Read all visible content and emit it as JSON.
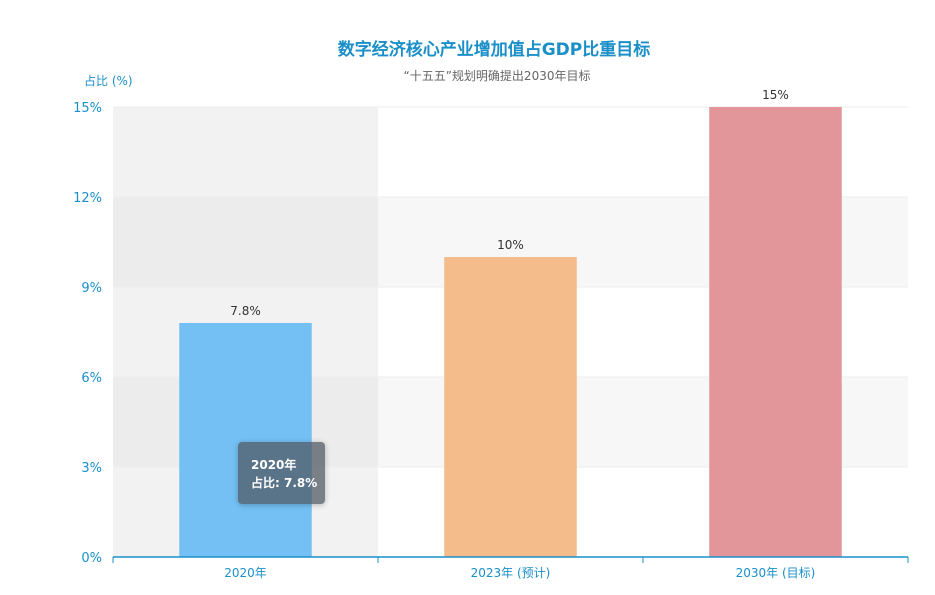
{
  "chart_data": {
    "type": "bar",
    "title": "数字经济核心产业增加值占GDP比重目标",
    "subtitle": "“十五五”规划明确提出2030年目标",
    "ylabel": "占比 (%)",
    "categories": [
      "2020年",
      "2023年 (预计)",
      "2030年 (目标)"
    ],
    "values": [
      7.8,
      10,
      15
    ],
    "data_labels": [
      "7.8%",
      "10%",
      "15%"
    ],
    "bar_colors": [
      "#74c0f4",
      "#f4bc8b",
      "#e2969a"
    ],
    "ylim": [
      0,
      15
    ],
    "yticks": [
      0,
      3,
      6,
      9,
      12,
      15
    ],
    "ytick_labels": [
      "0%",
      "3%",
      "6%",
      "9%",
      "12%",
      "15%"
    ],
    "grid": true,
    "highlighted_category": "2020年"
  },
  "tooltip": {
    "category": "2020年",
    "value_text": "占比: 7.8%"
  },
  "colors": {
    "accent": "#1a8fc8",
    "band_light": "#f7f7f7",
    "highlight_band": "#ebebeb"
  }
}
